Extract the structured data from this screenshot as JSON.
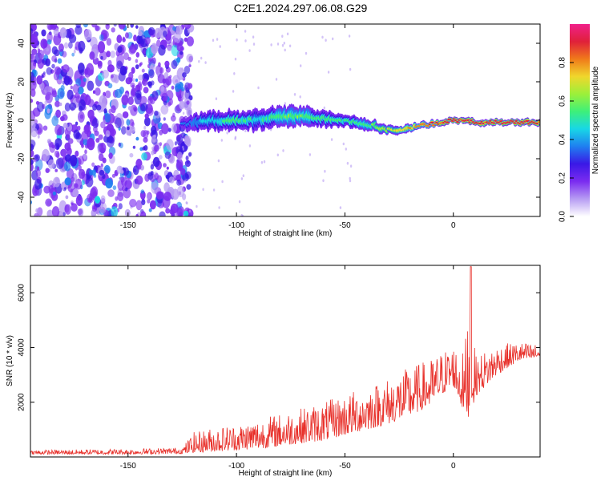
{
  "title": "C2E1.2024.297.06.08.G29",
  "colors": {
    "axis": "#000000",
    "snr_line": "#e8302a",
    "colormap": [
      "#ffffff",
      "#b79cf3",
      "#7b2cf0",
      "#3a18e6",
      "#1f7ff0",
      "#18d7e6",
      "#3df07a",
      "#9cf03a",
      "#f0d72c",
      "#f07a1a",
      "#e0203a",
      "#f0208a"
    ]
  },
  "chart_data": [
    {
      "type": "heatmap",
      "xlabel": "Height of straight line (km)",
      "ylabel": "Frequency (Hz)",
      "xlim": [
        -195,
        40
      ],
      "ylim": [
        -50,
        50
      ],
      "x_ticks": [
        -150,
        -100,
        -50,
        0
      ],
      "x_tick_labels": [
        "-150",
        "-100",
        "-50",
        "0"
      ],
      "y_ticks": [
        -40,
        -20,
        0,
        20,
        40
      ],
      "y_tick_labels": [
        "-40",
        "-20",
        "0",
        "20",
        "40"
      ],
      "colorbar": {
        "label": "Normalized spectral amplitude",
        "range": [
          0,
          1
        ],
        "ticks": [
          0.0,
          0.2,
          0.4,
          0.6,
          0.8
        ],
        "tick_labels": [
          "0.0",
          "0.2",
          "0.4",
          "0.6",
          "0.8"
        ]
      },
      "noise_region_x": [
        -195,
        -125
      ],
      "signal_band": {
        "x": [
          -125,
          -110,
          -100,
          -90,
          -80,
          -70,
          -60,
          -50,
          -40,
          -30,
          -25,
          -20,
          -10,
          0,
          10,
          20,
          30,
          40
        ],
        "center_freq": [
          -2,
          0,
          0,
          0,
          2,
          2,
          1,
          0,
          -2,
          -5,
          -5,
          -4,
          -2,
          0,
          -1,
          -1,
          -1,
          -1
        ],
        "half_width": [
          3,
          5,
          5,
          5,
          5,
          5,
          4,
          3,
          3,
          2,
          2,
          2,
          1.5,
          1.5,
          1.5,
          1.5,
          1.5,
          1.5
        ],
        "amplitude": [
          0.35,
          0.5,
          0.55,
          0.5,
          0.6,
          0.6,
          0.55,
          0.55,
          0.6,
          0.7,
          0.75,
          0.8,
          0.9,
          0.95,
          0.95,
          0.95,
          0.95,
          0.95
        ]
      }
    },
    {
      "type": "line",
      "xlabel": "Height of straight line (km)",
      "ylabel": "SNR (10 * v/v)",
      "xlim": [
        -195,
        40
      ],
      "ylim": [
        0,
        7000
      ],
      "x_ticks": [
        -150,
        -100,
        -50,
        0
      ],
      "x_tick_labels": [
        "-150",
        "-100",
        "-50",
        "0"
      ],
      "y_ticks": [
        2000,
        4000,
        6000
      ],
      "y_tick_labels": [
        "2000",
        "4000",
        "6000"
      ],
      "series": [
        {
          "envelope_x": [
            -195,
            -150,
            -125,
            -120,
            -110,
            -100,
            -90,
            -80,
            -70,
            -60,
            -50,
            -40,
            -30,
            -20,
            -10,
            -5,
            0,
            5,
            8,
            10,
            20,
            30,
            40
          ],
          "envelope_y": [
            250,
            300,
            350,
            900,
            1100,
            1200,
            1400,
            1600,
            1800,
            2000,
            2300,
            2600,
            2900,
            3300,
            3600,
            3900,
            4100,
            3800,
            6900,
            3700,
            4100,
            4200,
            4100
          ],
          "floor_y": [
            100,
            100,
            120,
            150,
            200,
            250,
            300,
            400,
            500,
            600,
            800,
            1000,
            1200,
            1500,
            1900,
            2300,
            2600,
            1600,
            1400,
            2200,
            3000,
            3500,
            3600
          ],
          "spike_x": 8,
          "spike_y": 6950
        }
      ]
    }
  ]
}
